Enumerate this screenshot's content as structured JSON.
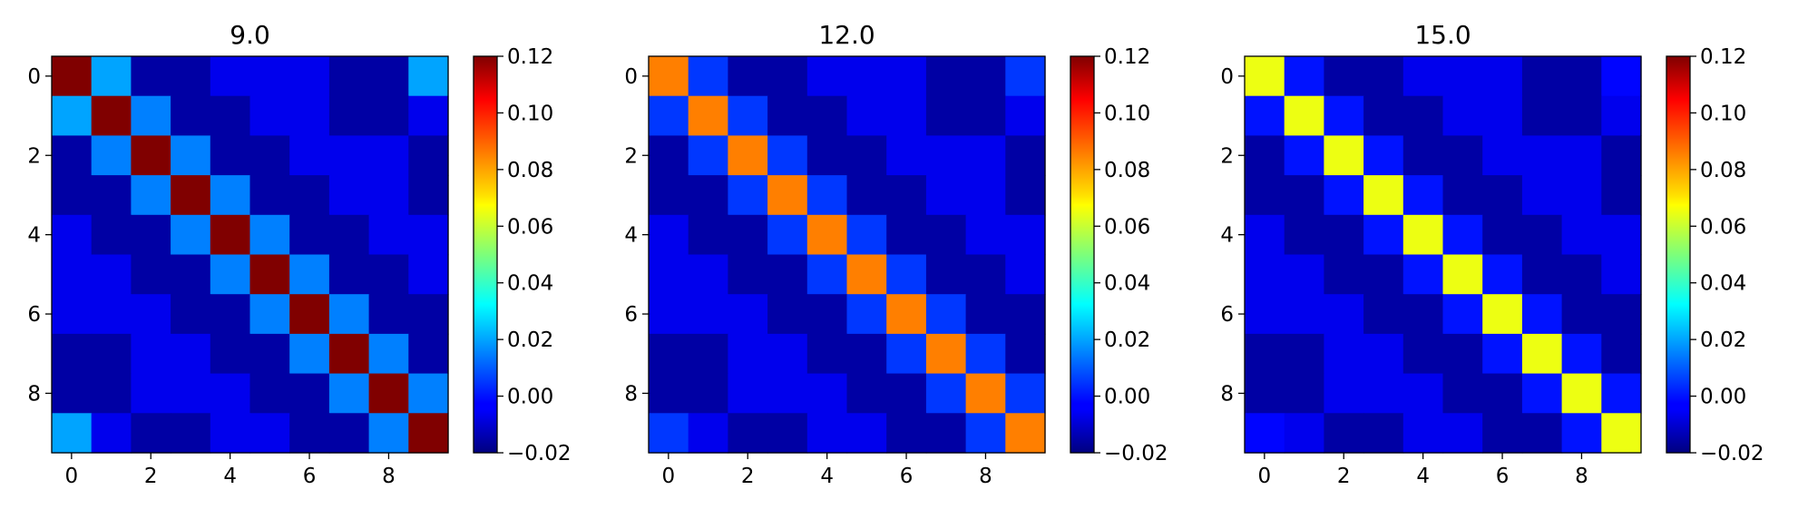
{
  "chart_data": [
    {
      "type": "heatmap",
      "title": "9.0",
      "xticks": [
        0,
        2,
        4,
        6,
        8
      ],
      "yticks": [
        0,
        2,
        4,
        6,
        8
      ],
      "colorbar_ticks": [
        "0.12",
        "0.10",
        "0.08",
        "0.06",
        "0.04",
        "0.02",
        "0.00",
        "−0.02"
      ],
      "vmin": -0.02,
      "vmax": 0.12,
      "colormap": "jet",
      "values": [
        [
          0.12,
          0.02,
          -0.015,
          -0.015,
          -0.005,
          -0.005,
          -0.005,
          -0.015,
          -0.015,
          0.02
        ],
        [
          0.02,
          0.12,
          0.015,
          -0.015,
          -0.015,
          -0.005,
          -0.005,
          -0.015,
          -0.015,
          -0.005
        ],
        [
          -0.015,
          0.015,
          0.12,
          0.015,
          -0.015,
          -0.015,
          -0.005,
          -0.005,
          -0.005,
          -0.015
        ],
        [
          -0.015,
          -0.015,
          0.015,
          0.12,
          0.015,
          -0.015,
          -0.015,
          -0.005,
          -0.005,
          -0.015
        ],
        [
          -0.005,
          -0.015,
          -0.015,
          0.015,
          0.12,
          0.015,
          -0.015,
          -0.015,
          -0.005,
          -0.005
        ],
        [
          -0.005,
          -0.005,
          -0.015,
          -0.015,
          0.015,
          0.12,
          0.015,
          -0.015,
          -0.015,
          -0.005
        ],
        [
          -0.005,
          -0.005,
          -0.005,
          -0.015,
          -0.015,
          0.015,
          0.12,
          0.015,
          -0.015,
          -0.015
        ],
        [
          -0.015,
          -0.015,
          -0.005,
          -0.005,
          -0.015,
          -0.015,
          0.015,
          0.12,
          0.015,
          -0.015
        ],
        [
          -0.015,
          -0.015,
          -0.005,
          -0.005,
          -0.005,
          -0.015,
          -0.015,
          0.015,
          0.12,
          0.015
        ],
        [
          0.02,
          -0.005,
          -0.015,
          -0.015,
          -0.005,
          -0.005,
          -0.015,
          -0.015,
          0.015,
          0.12
        ]
      ]
    },
    {
      "type": "heatmap",
      "title": "12.0",
      "xticks": [
        0,
        2,
        4,
        6,
        8
      ],
      "yticks": [
        0,
        2,
        4,
        6,
        8
      ],
      "colorbar_ticks": [
        "0.12",
        "0.10",
        "0.08",
        "0.06",
        "0.04",
        "0.02",
        "0.00",
        "−0.02"
      ],
      "vmin": -0.02,
      "vmax": 0.12,
      "colormap": "jet",
      "values": [
        [
          0.085,
          0.005,
          -0.015,
          -0.015,
          -0.005,
          -0.005,
          -0.005,
          -0.015,
          -0.015,
          0.005
        ],
        [
          0.005,
          0.085,
          0.005,
          -0.015,
          -0.015,
          -0.005,
          -0.005,
          -0.015,
          -0.015,
          -0.005
        ],
        [
          -0.015,
          0.005,
          0.085,
          0.005,
          -0.015,
          -0.015,
          -0.005,
          -0.005,
          -0.005,
          -0.015
        ],
        [
          -0.015,
          -0.015,
          0.005,
          0.085,
          0.005,
          -0.015,
          -0.015,
          -0.005,
          -0.005,
          -0.015
        ],
        [
          -0.005,
          -0.015,
          -0.015,
          0.005,
          0.085,
          0.005,
          -0.015,
          -0.015,
          -0.005,
          -0.005
        ],
        [
          -0.005,
          -0.005,
          -0.015,
          -0.015,
          0.005,
          0.085,
          0.005,
          -0.015,
          -0.015,
          -0.005
        ],
        [
          -0.005,
          -0.005,
          -0.005,
          -0.015,
          -0.015,
          0.005,
          0.085,
          0.005,
          -0.015,
          -0.015
        ],
        [
          -0.015,
          -0.015,
          -0.005,
          -0.005,
          -0.015,
          -0.015,
          0.005,
          0.085,
          0.005,
          -0.015
        ],
        [
          -0.015,
          -0.015,
          -0.005,
          -0.005,
          -0.005,
          -0.015,
          -0.015,
          0.005,
          0.085,
          0.005
        ],
        [
          0.005,
          -0.005,
          -0.015,
          -0.015,
          -0.005,
          -0.005,
          -0.015,
          -0.015,
          0.005,
          0.085
        ]
      ]
    },
    {
      "type": "heatmap",
      "title": "15.0",
      "xticks": [
        0,
        2,
        4,
        6,
        8
      ],
      "yticks": [
        0,
        2,
        4,
        6,
        8
      ],
      "colorbar_ticks": [
        "0.12",
        "0.10",
        "0.08",
        "0.06",
        "0.04",
        "0.02",
        "0.00",
        "−0.02"
      ],
      "vmin": -0.02,
      "vmax": 0.12,
      "colormap": "jet",
      "values": [
        [
          0.065,
          0.0,
          -0.015,
          -0.015,
          -0.005,
          -0.005,
          -0.005,
          -0.015,
          -0.015,
          -0.002
        ],
        [
          0.0,
          0.065,
          0.0,
          -0.015,
          -0.015,
          -0.005,
          -0.005,
          -0.015,
          -0.015,
          -0.005
        ],
        [
          -0.015,
          0.0,
          0.065,
          0.0,
          -0.015,
          -0.015,
          -0.005,
          -0.005,
          -0.005,
          -0.015
        ],
        [
          -0.015,
          -0.015,
          0.0,
          0.065,
          0.0,
          -0.015,
          -0.015,
          -0.005,
          -0.005,
          -0.015
        ],
        [
          -0.005,
          -0.015,
          -0.015,
          0.0,
          0.065,
          0.0,
          -0.015,
          -0.015,
          -0.005,
          -0.005
        ],
        [
          -0.005,
          -0.005,
          -0.015,
          -0.015,
          0.0,
          0.065,
          0.0,
          -0.015,
          -0.015,
          -0.005
        ],
        [
          -0.005,
          -0.005,
          -0.005,
          -0.015,
          -0.015,
          0.0,
          0.065,
          0.0,
          -0.015,
          -0.015
        ],
        [
          -0.015,
          -0.015,
          -0.005,
          -0.005,
          -0.015,
          -0.015,
          0.0,
          0.065,
          0.0,
          -0.015
        ],
        [
          -0.015,
          -0.015,
          -0.005,
          -0.005,
          -0.005,
          -0.015,
          -0.015,
          0.0,
          0.065,
          0.0
        ],
        [
          -0.002,
          -0.005,
          -0.015,
          -0.015,
          -0.005,
          -0.005,
          -0.015,
          -0.015,
          0.0,
          0.065
        ]
      ]
    }
  ]
}
